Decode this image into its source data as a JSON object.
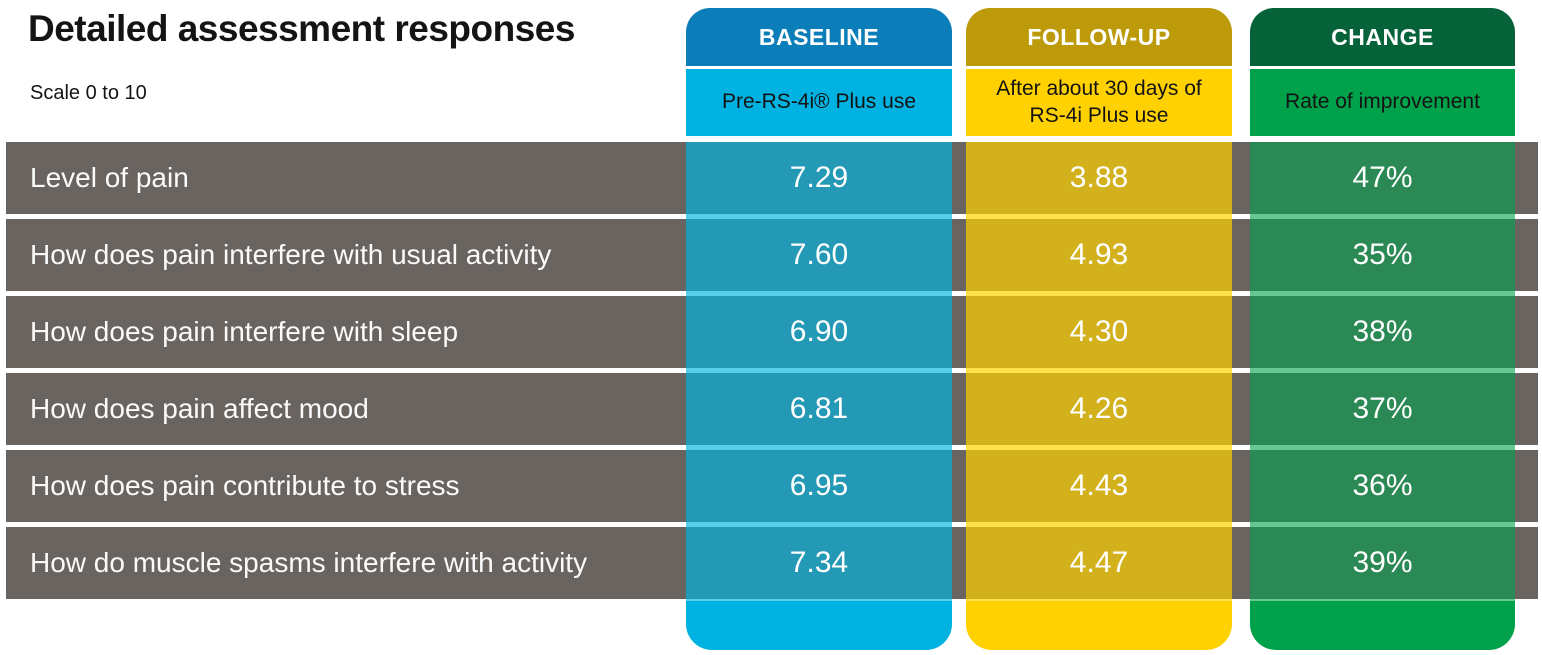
{
  "page": {
    "title": "Detailed assessment responses",
    "subtitle": "Scale 0 to 10"
  },
  "colors": {
    "blue_dark": "#0b7db8",
    "blue_light": "#00b2e1",
    "gold_dark": "#bd9a0a",
    "yellow": "#ffd100",
    "green_dark": "#066339",
    "green_mid": "#00a14b",
    "row_gray": "#6a6461",
    "overlay_blue": "rgba(0,181,226,0.66)",
    "overlay_yellow": "rgba(255,209,0,0.70)",
    "overlay_green": "rgba(0,161,75,0.60)"
  },
  "columns": [
    {
      "id": "baseline",
      "header": "BASELINE",
      "subheader": "Pre-RS-4i® Plus use"
    },
    {
      "id": "followup",
      "header": "FOLLOW-UP",
      "subheader": "After about 30 days of RS-4i Plus use"
    },
    {
      "id": "change",
      "header": "CHANGE",
      "subheader": "Rate of improvement"
    }
  ],
  "table": {
    "rows": [
      {
        "label": "Level of pain",
        "baseline": "7.29",
        "followup": "3.88",
        "change": "47%"
      },
      {
        "label": "How does pain interfere with usual activity",
        "baseline": "7.60",
        "followup": "4.93",
        "change": "35%"
      },
      {
        "label": "How does pain interfere with sleep",
        "baseline": "6.90",
        "followup": "4.30",
        "change": "38%"
      },
      {
        "label": "How does pain affect mood",
        "baseline": "6.81",
        "followup": "4.26",
        "change": "37%"
      },
      {
        "label": "How does pain contribute to stress",
        "baseline": "6.95",
        "followup": "4.43",
        "change": "36%"
      },
      {
        "label": "How do muscle spasms interfere with activity",
        "baseline": "7.34",
        "followup": "4.47",
        "change": "39%"
      }
    ]
  },
  "chart_data": {
    "type": "table",
    "title": "Detailed assessment responses",
    "subtitle": "Scale 0 to 10",
    "scale": [
      0,
      10
    ],
    "categories": [
      "Level of pain",
      "How does pain interfere with usual activity",
      "How does pain interfere with sleep",
      "How does pain affect mood",
      "How does pain contribute to stress",
      "How do muscle spasms interfere with activity"
    ],
    "series": [
      {
        "name": "Baseline (Pre-RS-4i® Plus use)",
        "values": [
          7.29,
          7.6,
          6.9,
          6.81,
          6.95,
          7.34
        ]
      },
      {
        "name": "Follow-up (After about 30 days of RS-4i Plus use)",
        "values": [
          3.88,
          4.93,
          4.3,
          4.26,
          4.43,
          4.47
        ]
      },
      {
        "name": "Change (Rate of improvement)",
        "values": [
          "47%",
          "35%",
          "38%",
          "37%",
          "36%",
          "39%"
        ]
      }
    ]
  }
}
